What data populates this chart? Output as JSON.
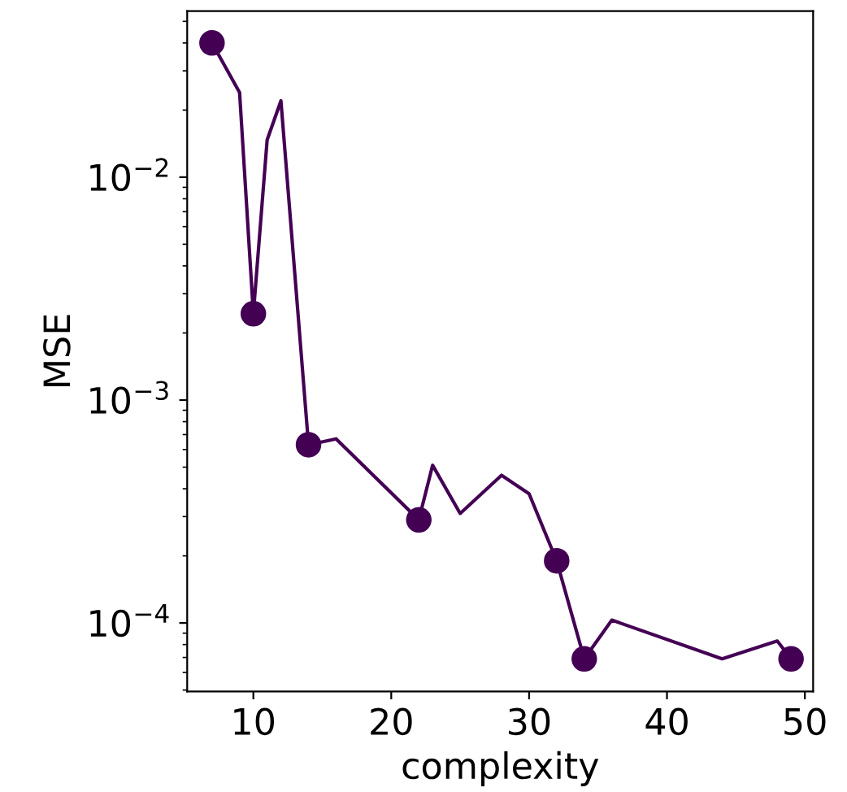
{
  "chart_data": {
    "type": "line",
    "xlabel": "complexity",
    "ylabel": "MSE",
    "log": "y",
    "grid": false,
    "xlim": [
      5.2,
      50.6
    ],
    "xticks": [
      10,
      20,
      30,
      40,
      50
    ],
    "ylim": [
      4.93e-05,
      0.0556
    ],
    "yticks": [
      {
        "value": 0.0001,
        "label": "10$^{−4}$"
      },
      {
        "value": 0.001,
        "label": "10$^{−3}$"
      },
      {
        "value": 0.01,
        "label": "10$^{−2}$"
      }
    ],
    "series": [
      {
        "color": "#440154",
        "marker": "none",
        "x": [
          7,
          9,
          10,
          11,
          12,
          14,
          16,
          22,
          23,
          25,
          28,
          30,
          32,
          34,
          36,
          44,
          48,
          49
        ],
        "values": [
          0.04,
          0.024,
          0.00244,
          0.0147,
          0.022,
          0.00063,
          0.00067,
          0.00029,
          0.00051,
          0.00031,
          0.00046,
          0.00038,
          0.00019,
          6.9e-05,
          0.000103,
          6.9e-05,
          8.3e-05,
          6.9e-05
        ]
      },
      {
        "type": "scatter",
        "color": "#440154",
        "marker": "circle",
        "x": [
          7,
          10,
          14,
          22,
          32,
          34,
          49
        ],
        "values": [
          0.04,
          0.00244,
          0.00063,
          0.00029,
          0.00019,
          6.9e-05,
          6.9e-05
        ]
      }
    ]
  }
}
